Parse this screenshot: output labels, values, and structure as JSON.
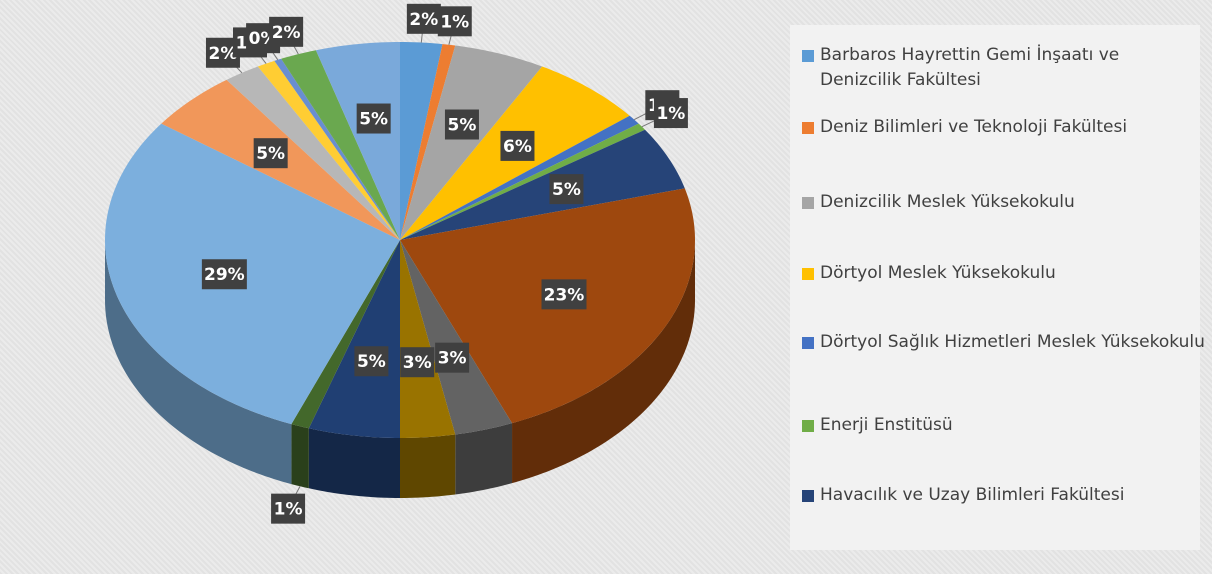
{
  "chart_data": {
    "type": "pie",
    "categories": [
      "Barbaros Hayrettin Gemi İnşaatı ve Denizcilik Fakültesi",
      "Deniz Bilimleri ve Teknoloji Fakültesi",
      "Denizcilik Meslek Yüksekokulu",
      "Dörtyol Meslek Yüksekokulu",
      "Dörtyol Sağlık Hizmetleri Meslek Yüksekokulu",
      "Enerji Enstitüsü",
      "Havacılık ve Uzay Bilimleri Fakültesi",
      null,
      null,
      null,
      null,
      null,
      null,
      null,
      null,
      null,
      null,
      null,
      null
    ],
    "values": [
      2.3,
      0.7,
      5,
      6.2,
      0.8,
      0.6,
      5.2,
      23,
      3.2,
      3,
      5,
      1,
      29,
      5,
      2,
      1,
      0.4,
      2,
      4.6
    ],
    "value_labels": [
      "2%",
      "1%",
      "5%",
      "6%",
      "1%",
      "1%",
      "5%",
      "23%",
      "3%",
      "3%",
      "5%",
      "1%",
      "29%",
      "5%",
      "2%",
      "1%",
      "0%",
      "2%",
      "5%"
    ],
    "colors": [
      "#5b9bd5",
      "#ed7d31",
      "#a5a5a5",
      "#ffc000",
      "#4472c4",
      "#70ad47",
      "#264478",
      "#9e480e",
      "#636363",
      "#997300",
      "#203f73",
      "#43682b",
      "#7cafdd",
      "#f1975a",
      "#b7b7b7",
      "#ffcd33",
      "#698ed0",
      "#6aa84f",
      "#7aa9da"
    ],
    "legend_position": "right"
  }
}
